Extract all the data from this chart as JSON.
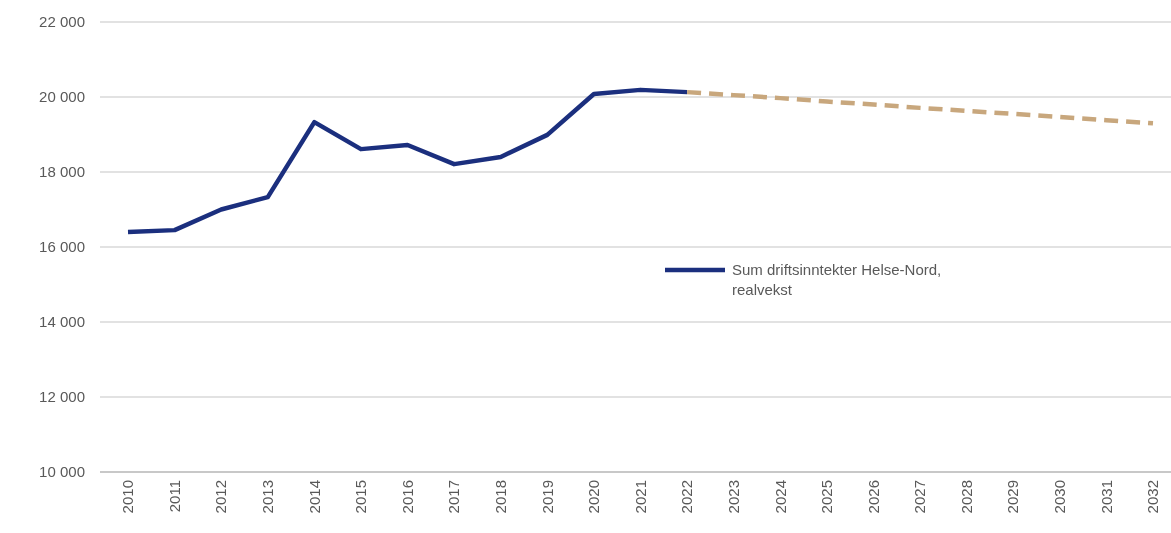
{
  "chart_data": {
    "type": "line",
    "categories": [
      "2010",
      "2011",
      "2012",
      "2013",
      "2014",
      "2015",
      "2016",
      "2017",
      "2018",
      "2019",
      "2020",
      "2021",
      "2022",
      "2023",
      "2024",
      "2025",
      "2026",
      "2027",
      "2028",
      "2029",
      "2030",
      "2031",
      "2032"
    ],
    "series": [
      {
        "name": "Sum driftsinntekter Helse-Nord, realvekst",
        "color": "#1b2f7e",
        "line_style": "solid",
        "values": [
          16400,
          16450,
          17000,
          17330,
          19330,
          18610,
          18720,
          18210,
          18400,
          18990,
          20080,
          20190,
          20130,
          null,
          null,
          null,
          null,
          null,
          null,
          null,
          null,
          null,
          null
        ]
      },
      {
        "color": "#c8a77d",
        "line_style": "dashed",
        "values": [
          null,
          null,
          null,
          null,
          null,
          null,
          null,
          null,
          null,
          null,
          null,
          null,
          20130,
          20050,
          19970,
          19880,
          19800,
          19710,
          19630,
          19550,
          19470,
          19380,
          19300
        ]
      }
    ],
    "ylim": [
      10000,
      22000
    ],
    "yticks": [
      {
        "value": 10000,
        "label": "10 000"
      },
      {
        "value": 12000,
        "label": "12 000"
      },
      {
        "value": 14000,
        "label": "14 000"
      },
      {
        "value": 16000,
        "label": "16 000"
      },
      {
        "value": 18000,
        "label": "18 000"
      },
      {
        "value": 20000,
        "label": "20 000"
      },
      {
        "value": 22000,
        "label": "22 000"
      }
    ],
    "grid": "y",
    "legend": "right",
    "marker": "none"
  }
}
